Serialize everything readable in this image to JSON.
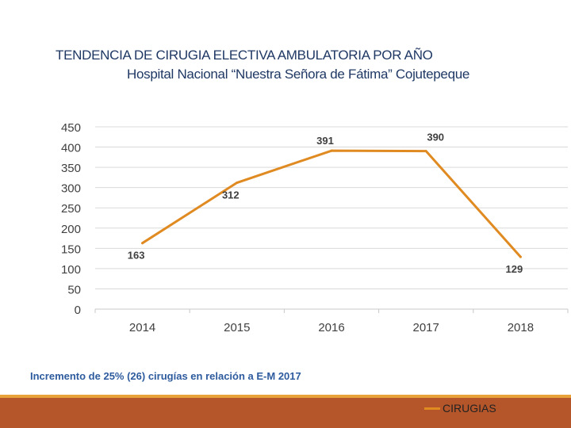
{
  "chart_data": {
    "type": "line",
    "title": "TENDENCIA DE CIRUGIA ELECTIVA AMBULATORIA POR AÑO",
    "subtitle": "Hospital Nacional “Nuestra Señora de Fátima” Cojutepeque",
    "categories": [
      "2014",
      "2015",
      "2016",
      "2017",
      "2018"
    ],
    "series": [
      {
        "name": "CIRUGIAS",
        "values": [
          163,
          312,
          391,
          390,
          129
        ],
        "color": "#e08a22"
      }
    ],
    "data_labels": [
      "163",
      "312",
      "391",
      "390",
      "129"
    ],
    "yticks": [
      "0",
      "50",
      "100",
      "150",
      "200",
      "250",
      "300",
      "350",
      "400",
      "450"
    ],
    "ylim": [
      0,
      450
    ],
    "grid": true,
    "legend_position": "bottom-right",
    "xlabel": "",
    "ylabel": ""
  },
  "note": "Incremento de 25% (26) cirugías en relación a E-M 2017",
  "colors": {
    "accent": "#e08a22",
    "footer": "#b5562a",
    "rule": "#e8a23a",
    "title": "#1f3864",
    "note": "#2e5b9e"
  }
}
